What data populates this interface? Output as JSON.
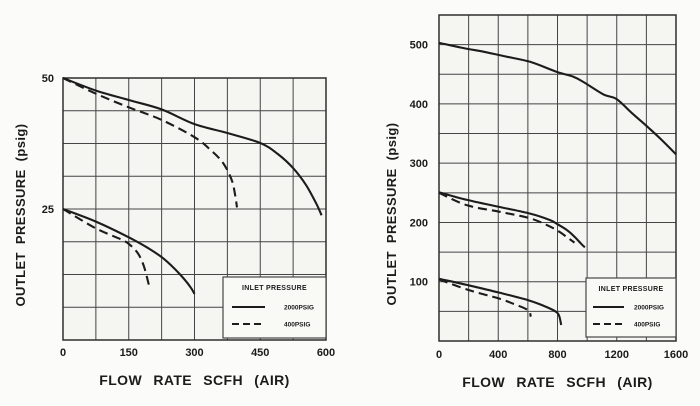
{
  "figure": {
    "paper_color": "#fbfbf9",
    "plot_fill": "#f5f5f2",
    "grid_color": "#454545",
    "border_color": "#2e2e2e",
    "curve_color": "#1c1c1c",
    "text_color": "#1b1b1b",
    "legend_fill": "#f9f9f6"
  },
  "chart_data": [
    {
      "type": "line",
      "title": "",
      "xlabel": "FLOW RATE SCFH (AIR)",
      "ylabel": "OUTLET PRESSURE (psig)",
      "xlim": [
        0,
        600
      ],
      "ylim": [
        0,
        50
      ],
      "x_grid_step": 75,
      "y_grid_step": 6.25,
      "grid": true,
      "xticks": [
        0,
        150,
        300,
        450,
        600
      ],
      "yticks": [
        25,
        50
      ],
      "legend": {
        "position": "bottom-right",
        "title": "INLET PRESSURE",
        "entries": [
          {
            "label": "2000PSIG",
            "style": "solid"
          },
          {
            "label": "400PSIG",
            "style": "dashed"
          }
        ]
      },
      "series": [
        {
          "name": "inlet-2000psig-set-50",
          "style": "solid",
          "points": [
            [
              0,
              50
            ],
            [
              75,
              47.6
            ],
            [
              150,
              45.8
            ],
            [
              225,
              44.0
            ],
            [
              300,
              41.2
            ],
            [
              375,
              39.5
            ],
            [
              450,
              37.6
            ],
            [
              490,
              35.5
            ],
            [
              525,
              32.8
            ],
            [
              555,
              29.5
            ],
            [
              578,
              26.0
            ],
            [
              590,
              23.8
            ]
          ]
        },
        {
          "name": "inlet-400psig-set-50",
          "style": "dashed",
          "points": [
            [
              0,
              50
            ],
            [
              75,
              47.0
            ],
            [
              150,
              44.4
            ],
            [
              225,
              42.0
            ],
            [
              300,
              38.7
            ],
            [
              335,
              36.4
            ],
            [
              365,
              33.8
            ],
            [
              385,
              30.5
            ],
            [
              393,
              27.5
            ],
            [
              397,
              25.3
            ]
          ]
        },
        {
          "name": "inlet-2000psig-set-25",
          "style": "solid",
          "points": [
            [
              0,
              25
            ],
            [
              75,
              22.6
            ],
            [
              150,
              19.6
            ],
            [
              195,
              17.5
            ],
            [
              230,
              15.5
            ],
            [
              265,
              12.7
            ],
            [
              290,
              10.2
            ],
            [
              300,
              8.8
            ]
          ]
        },
        {
          "name": "inlet-400psig-set-25",
          "style": "dashed",
          "points": [
            [
              0,
              25
            ],
            [
              75,
              21.3
            ],
            [
              135,
              19.1
            ],
            [
              155,
              18.0
            ],
            [
              172,
              16.4
            ],
            [
              184,
              14.2
            ],
            [
              192,
              11.8
            ],
            [
              196,
              10.5
            ]
          ]
        }
      ]
    },
    {
      "type": "line",
      "title": "",
      "xlabel": "FLOW RATE SCFH (AIR)",
      "ylabel": "OUTLET PRESSURE (psig)",
      "xlim": [
        0,
        1600
      ],
      "ylim": [
        0,
        550
      ],
      "x_grid_step": 200,
      "y_grid_step": 50,
      "grid": true,
      "xticks": [
        0,
        400,
        800,
        1200,
        1600
      ],
      "yticks": [
        100,
        200,
        300,
        400,
        500
      ],
      "legend": {
        "position": "bottom-right",
        "title": "INLET PRESSURE",
        "entries": [
          {
            "label": "2000PSIG",
            "style": "solid"
          },
          {
            "label": "400PSIG",
            "style": "dashed"
          }
        ]
      },
      "series": [
        {
          "name": "inlet-2000psig-set-500",
          "style": "solid",
          "points": [
            [
              0,
              503
            ],
            [
              150,
              495
            ],
            [
              300,
              488
            ],
            [
              450,
              480
            ],
            [
              615,
              471
            ],
            [
              795,
              454
            ],
            [
              905,
              446
            ],
            [
              975,
              437
            ],
            [
              1110,
              416
            ],
            [
              1200,
              408
            ],
            [
              1300,
              385
            ],
            [
              1400,
              363
            ],
            [
              1500,
              340
            ],
            [
              1600,
              315
            ]
          ]
        },
        {
          "name": "inlet-2000psig-set-250",
          "style": "solid",
          "points": [
            [
              0,
              251
            ],
            [
              190,
              238
            ],
            [
              410,
              226
            ],
            [
              615,
              215
            ],
            [
              750,
              204
            ],
            [
              800,
              197
            ],
            [
              865,
              187
            ],
            [
              915,
              176
            ],
            [
              960,
              164
            ],
            [
              985,
              158
            ]
          ]
        },
        {
          "name": "inlet-400psig-set-250",
          "style": "dashed",
          "points": [
            [
              0,
              250
            ],
            [
              190,
              229
            ],
            [
              410,
              218
            ],
            [
              615,
              207
            ],
            [
              750,
              193
            ],
            [
              820,
              183
            ],
            [
              870,
              174
            ],
            [
              915,
              166
            ]
          ]
        },
        {
          "name": "inlet-2000psig-set-100",
          "style": "solid",
          "points": [
            [
              0,
              105
            ],
            [
              200,
              94
            ],
            [
              400,
              82
            ],
            [
              600,
              69
            ],
            [
              700,
              60
            ],
            [
              780,
              51
            ],
            [
              810,
              43
            ],
            [
              825,
              27
            ]
          ]
        },
        {
          "name": "inlet-400psig-set-100",
          "style": "dashed",
          "points": [
            [
              0,
              104
            ],
            [
              200,
              86
            ],
            [
              400,
              72
            ],
            [
              500,
              63
            ],
            [
              600,
              52
            ],
            [
              620,
              41
            ]
          ]
        }
      ]
    }
  ]
}
